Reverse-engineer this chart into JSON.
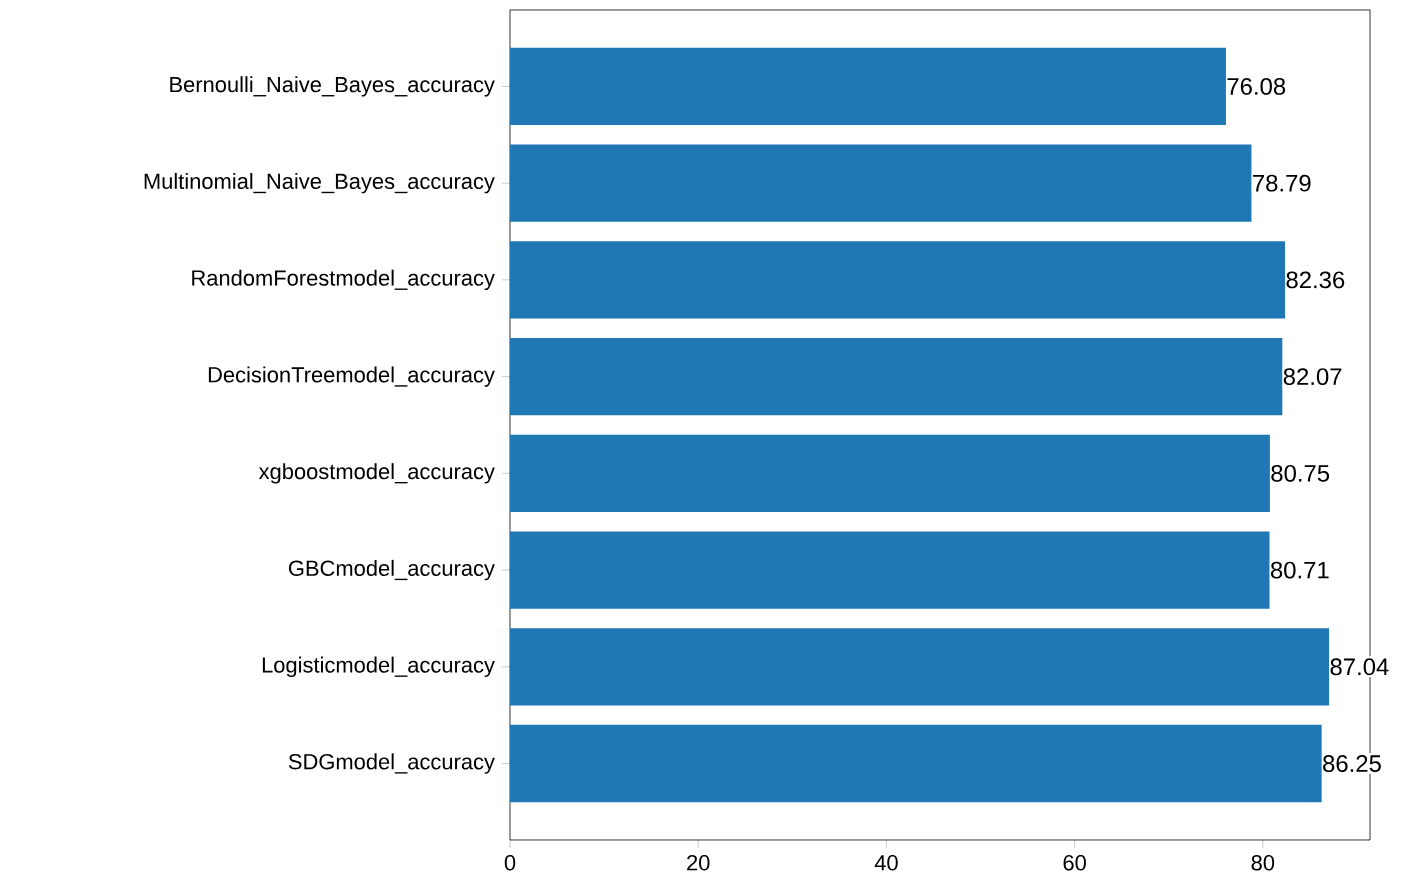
{
  "chart_data": {
    "type": "bar",
    "orientation": "horizontal",
    "categories": [
      "Bernoulli_Naive_Bayes_accuracy",
      "Multinomial_Naive_Bayes_accuracy",
      "RandomForestmodel_accuracy",
      "DecisionTreemodel_accuracy",
      "xgboostmodel_accuracy",
      "GBCmodel_accuracy",
      "Logisticmodel_accuracy",
      "SDGmodel_accuracy"
    ],
    "values": [
      76.08,
      78.79,
      82.36,
      82.07,
      80.75,
      80.71,
      87.04,
      86.25
    ],
    "color": "#1f77b4",
    "data_labels": true,
    "xlim": [
      0,
      91.39
    ],
    "xticks": [
      0,
      20,
      40,
      60,
      80
    ]
  }
}
